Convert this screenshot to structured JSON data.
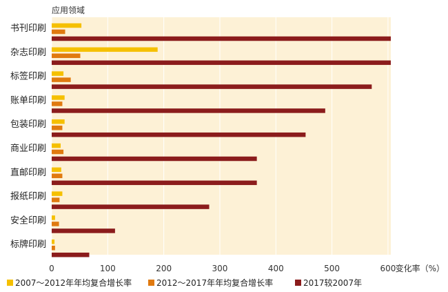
{
  "chart_data": {
    "type": "bar",
    "orientation": "horizontal",
    "ylabel": "应用领域",
    "xlabel": "变化率（%）",
    "categories": [
      "书刊印刷",
      "杂志印刷",
      "标签印刷",
      "账单印刷",
      "包装印刷",
      "商业印刷",
      "直邮印刷",
      "报纸印刷",
      "安全印刷",
      "标牌印刷"
    ],
    "series": [
      {
        "name": "2007～2012年年均复合增长率",
        "color": "#f5c000",
        "values": [
          53,
          189,
          21,
          23,
          23,
          16,
          17,
          19,
          6,
          5
        ]
      },
      {
        "name": "2012～2017年年均复合增长率",
        "color": "#e07a10",
        "values": [
          24,
          51,
          34,
          19,
          19,
          21,
          19,
          14,
          13,
          6
        ]
      },
      {
        "name": "2017较2007年",
        "color": "#8b1c1c",
        "values": [
          605,
          605,
          571,
          488,
          453,
          366,
          366,
          281,
          113,
          67
        ]
      }
    ],
    "xlim": [
      0,
      605
    ],
    "xticks": [
      0,
      100,
      200,
      300,
      400,
      500,
      600
    ],
    "plot_background": "#fdf1d6",
    "grid": "vertical",
    "legend": "bottom"
  }
}
